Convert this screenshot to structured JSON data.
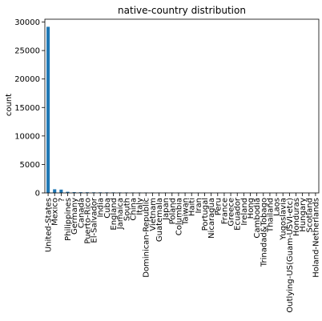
{
  "chart_data": {
    "type": "bar",
    "title": "native-country distribution",
    "xlabel": "",
    "ylabel": "count",
    "ylim": [
      0,
      30500
    ],
    "yticks": [
      0,
      5000,
      10000,
      15000,
      20000,
      25000,
      30000
    ],
    "grid": false,
    "legend": "none",
    "bar_color": "#1f77b4",
    "categories": [
      "United-States",
      "Mexico",
      "?",
      "Philippines",
      "Germany",
      "Canada",
      "Puerto-Rico",
      "El-Salvador",
      "India",
      "Cuba",
      "England",
      "Jamaica",
      "South",
      "China",
      "Italy",
      "Dominican-Republic",
      "Vietnam",
      "Guatemala",
      "Japan",
      "Poland",
      "Columbia",
      "Taiwan",
      "Haiti",
      "Iran",
      "Portugal",
      "Nicaragua",
      "Peru",
      "France",
      "Greece",
      "Ecuador",
      "Ireland",
      "Hong",
      "Cambodia",
      "Trinadad&Tobago",
      "Thailand",
      "Laos",
      "Yugoslavia",
      "Outlying-US(Guam-USVI-etc)",
      "Honduras",
      "Hungary",
      "Scotland",
      "Holand-Netherlands"
    ],
    "values": [
      29170,
      643,
      583,
      198,
      137,
      121,
      114,
      106,
      100,
      95,
      90,
      81,
      80,
      75,
      73,
      70,
      67,
      64,
      62,
      60,
      59,
      51,
      44,
      43,
      37,
      34,
      31,
      29,
      29,
      28,
      24,
      20,
      19,
      19,
      18,
      18,
      16,
      14,
      13,
      13,
      12,
      1
    ]
  }
}
